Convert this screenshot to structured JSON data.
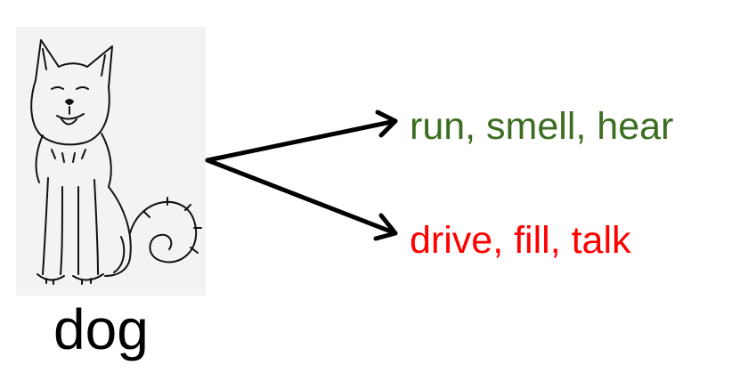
{
  "subject": {
    "label": "dog",
    "image_icon": "dog-line-drawing"
  },
  "outcomes": {
    "positive": {
      "text": "run, smell, hear",
      "color": "#3c6e21"
    },
    "negative": {
      "text": "drive, fill, talk",
      "color": "#ff0000"
    }
  },
  "arrow_color": "#000000"
}
